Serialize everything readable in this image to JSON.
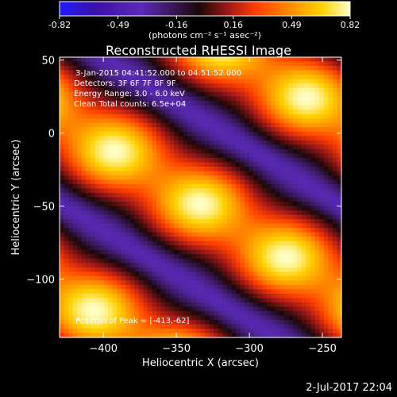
{
  "colorbar": {
    "ticks": [
      "-0.82",
      "-0.49",
      "-0.16",
      "0.16",
      "0.49",
      "0.82"
    ],
    "tick_values": [
      -0.82,
      -0.49,
      -0.16,
      0.16,
      0.49,
      0.82
    ],
    "units_label": "(photons cm⁻² s⁻¹ asec⁻²)",
    "range": [
      -0.82,
      0.82
    ],
    "colormap": [
      "#1e1eff",
      "#3b0fa8",
      "#5a2ab8",
      "#1a0808",
      "#a01818",
      "#ff4000",
      "#ff9000",
      "#ffd000",
      "#ffffc8"
    ]
  },
  "chart_data": {
    "type": "heatmap",
    "title": "Reconstructed RHESSI Image",
    "xlabel": "Heliocentric X (arcsec)",
    "ylabel": "Heliocentric Y (arcsec)",
    "xlim": [
      -430,
      -237
    ],
    "ylim": [
      -140,
      52
    ],
    "x_ticks": [
      -400,
      -350,
      -300,
      -250
    ],
    "y_ticks": [
      50,
      0,
      -50,
      -100
    ],
    "x_tick_labels": [
      "−400",
      "−350",
      "−300",
      "−250"
    ],
    "y_tick_labels": [
      "50",
      "0",
      "−50",
      "−100"
    ],
    "annotations": [
      "3-Jan-2015 04:41:52.000 to 04:51:52.000",
      "Detectors: 3F 6F 7F 8F 9F",
      "Energy Range: 3.0 - 6.0 keV",
      "Clean     Total counts: 6.5e+04",
      "Position of Peak = [-413,-62]"
    ],
    "peak_position": [
      -413,
      -62
    ],
    "pattern": {
      "description": "diagonal fringe pattern of alternating bright and dark bands",
      "peak_value": 0.82,
      "trough_value": -0.4
    }
  },
  "footer": {
    "date_stamp": "2-Jul-2017 22:04"
  }
}
